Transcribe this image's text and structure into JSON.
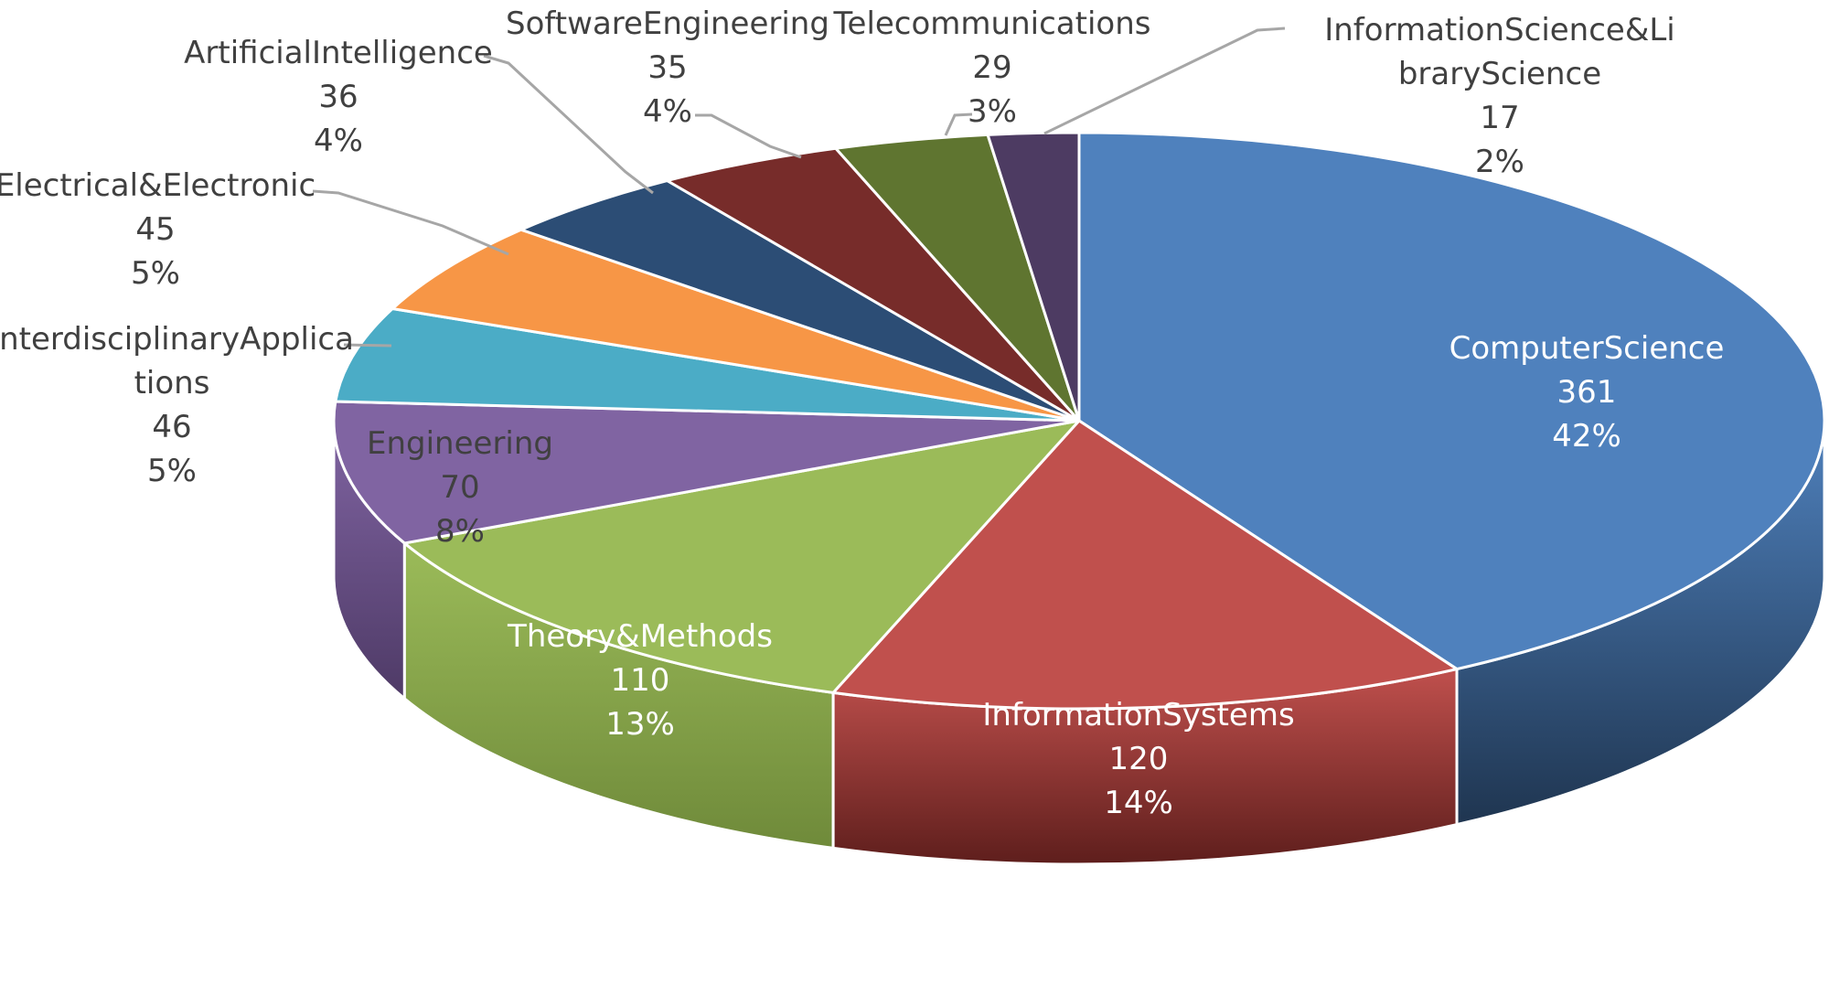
{
  "chart_data": {
    "type": "pie",
    "style": "3d-exploded-none",
    "title": "",
    "legend": "none",
    "data_labels": "category, value, percentage",
    "slices": [
      {
        "label": "ComputerScience",
        "label_lines": [
          "ComputerScience"
        ],
        "value": 361,
        "percent": "42%",
        "color": "#4F81BD",
        "side_color": "#1F3550"
      },
      {
        "label": "InformationSystems",
        "label_lines": [
          "InformationSystems"
        ],
        "value": 120,
        "percent": "14%",
        "color": "#C0504D",
        "side_color": "#5E1E1C"
      },
      {
        "label": "Theory&Methods",
        "label_lines": [
          "Theory&Methods"
        ],
        "value": 110,
        "percent": "13%",
        "color": "#9BBB59",
        "side_color": "#6F8A3A"
      },
      {
        "label": "Engineering",
        "label_lines": [
          "Engineering"
        ],
        "value": 70,
        "percent": "8%",
        "color": "#8064A2",
        "side_color": "#4E3A66"
      },
      {
        "label": "InterdisciplinaryApplications",
        "label_lines": [
          "InterdisciplinaryApplica",
          "tions"
        ],
        "value": 46,
        "percent": "5%",
        "color": "#4BACC6",
        "side_color": "#276C7E"
      },
      {
        "label": "Electrical&Electronic",
        "label_lines": [
          "Electrical&Electronic"
        ],
        "value": 45,
        "percent": "5%",
        "color": "#F79646",
        "side_color": "#9A561A"
      },
      {
        "label": "ArtificialIntelligence",
        "label_lines": [
          "ArtificialIntelligence"
        ],
        "value": 36,
        "percent": "4%",
        "color": "#2C4D75",
        "side_color": "#15263B"
      },
      {
        "label": "SoftwareEngineering",
        "label_lines": [
          "SoftwareEngineering"
        ],
        "value": 35,
        "percent": "4%",
        "color": "#772C2A",
        "side_color": "#3E1514"
      },
      {
        "label": "Telecommunications",
        "label_lines": [
          "Telecommunications"
        ],
        "value": 29,
        "percent": "3%",
        "color": "#5F7530",
        "side_color": "#333F19"
      },
      {
        "label": "InformationScience&LibraryScience",
        "label_lines": [
          "InformationScience&Li",
          "braryScience"
        ],
        "value": 17,
        "percent": "2%",
        "color": "#4D3B62",
        "side_color": "#281E33"
      }
    ]
  }
}
